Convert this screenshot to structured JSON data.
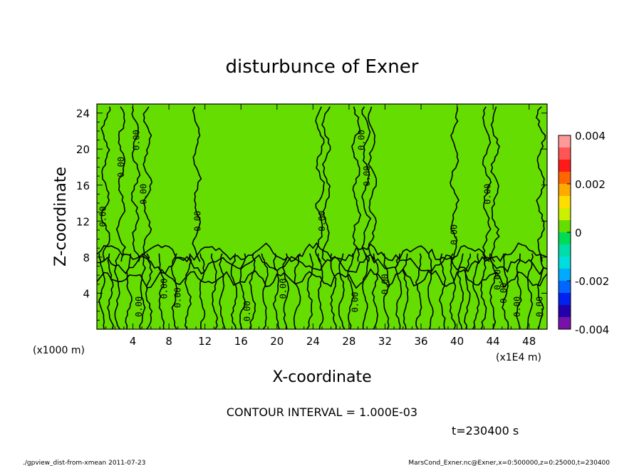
{
  "chart_data": {
    "type": "heatmap",
    "title": "disturbunce of Exner",
    "xlabel": "X-coordinate",
    "ylabel": "Z-coordinate",
    "x_unit_left": "(x1000 m)",
    "x_unit_right": "(x1E4 m)",
    "xlim": [
      0,
      50
    ],
    "ylim": [
      0,
      25
    ],
    "x_ticks": [
      "4",
      "8",
      "12",
      "16",
      "20",
      "24",
      "28",
      "32",
      "36",
      "40",
      "44",
      "48"
    ],
    "y_ticks": [
      "4",
      "8",
      "12",
      "16",
      "20",
      "24"
    ],
    "colorbar": {
      "ticks": [
        "0.004",
        "0.002",
        "0",
        "-0.002",
        "-0.004"
      ],
      "range": [
        -0.004,
        0.004
      ],
      "levels": [
        {
          "from": 0.0035,
          "to": 0.004,
          "color": "#ff9999"
        },
        {
          "from": 0.003,
          "to": 0.0035,
          "color": "#ff5555"
        },
        {
          "from": 0.0025,
          "to": 0.003,
          "color": "#ff1a1a"
        },
        {
          "from": 0.002,
          "to": 0.0025,
          "color": "#ff6600"
        },
        {
          "from": 0.0015,
          "to": 0.002,
          "color": "#ffaa00"
        },
        {
          "from": 0.001,
          "to": 0.0015,
          "color": "#ffdd00"
        },
        {
          "from": 0.0005,
          "to": 0.001,
          "color": "#ccee00"
        },
        {
          "from": 0.0,
          "to": 0.0005,
          "color": "#66dd00"
        },
        {
          "from": -0.0005,
          "to": 0.0,
          "color": "#00dd55"
        },
        {
          "from": -0.001,
          "to": -0.0005,
          "color": "#00ddaa"
        },
        {
          "from": -0.0015,
          "to": -0.001,
          "color": "#00dddd"
        },
        {
          "from": -0.002,
          "to": -0.0015,
          "color": "#00aaff"
        },
        {
          "from": -0.0025,
          "to": -0.002,
          "color": "#0066ff"
        },
        {
          "from": -0.003,
          "to": -0.0025,
          "color": "#0022ee"
        },
        {
          "from": -0.0035,
          "to": -0.003,
          "color": "#2200aa"
        },
        {
          "from": -0.004,
          "to": -0.0035,
          "color": "#7711aa"
        }
      ]
    },
    "field": {
      "upper_region_value_range": [
        0.0,
        0.0005
      ],
      "lower_region_value_range": [
        -0.0005,
        0.0005
      ],
      "boundary_z_approx": 8
    },
    "contour_labels": [
      {
        "text": "0.00",
        "x": 1,
        "z": 12.5
      },
      {
        "text": "0.00",
        "x": 3,
        "z": 18
      },
      {
        "text": "0.00",
        "x": 4.7,
        "z": 21
      },
      {
        "text": "0.00",
        "x": 5.5,
        "z": 15
      },
      {
        "text": "0.00",
        "x": 11.5,
        "z": 12
      },
      {
        "text": "0.00",
        "x": 25.3,
        "z": 12
      },
      {
        "text": "0.00",
        "x": 29.7,
        "z": 21
      },
      {
        "text": "0.00",
        "x": 30.3,
        "z": 17
      },
      {
        "text": "0.00",
        "x": 40,
        "z": 10.5
      },
      {
        "text": "0.00",
        "x": 43.7,
        "z": 15
      },
      {
        "text": "0.00",
        "x": 5,
        "z": 2.5
      },
      {
        "text": "0.00",
        "x": 7.8,
        "z": 4.5
      },
      {
        "text": "0.00",
        "x": 9.3,
        "z": 3.5
      },
      {
        "text": "0.00",
        "x": 17,
        "z": 2
      },
      {
        "text": "0.00",
        "x": 21,
        "z": 4.5
      },
      {
        "text": "0.00",
        "x": 29,
        "z": 3
      },
      {
        "text": "0.00",
        "x": 32.3,
        "z": 5
      },
      {
        "text": "0.00",
        "x": 44.8,
        "z": 5.5
      },
      {
        "text": "0.00",
        "x": 45.5,
        "z": 4
      },
      {
        "text": "0.00",
        "x": 47,
        "z": 2.5
      },
      {
        "text": "0.00",
        "x": 49.5,
        "z": 2.5
      }
    ]
  },
  "contour_interval_text": "CONTOUR INTERVAL = 1.000E-03",
  "time_text": "t=230400 s",
  "footer_left": "./gpview_dist-from-xmean   2011-07-23",
  "footer_right": "MarsCond_Exner.nc@Exner,x=0:500000,z=0:25000,t=230400"
}
